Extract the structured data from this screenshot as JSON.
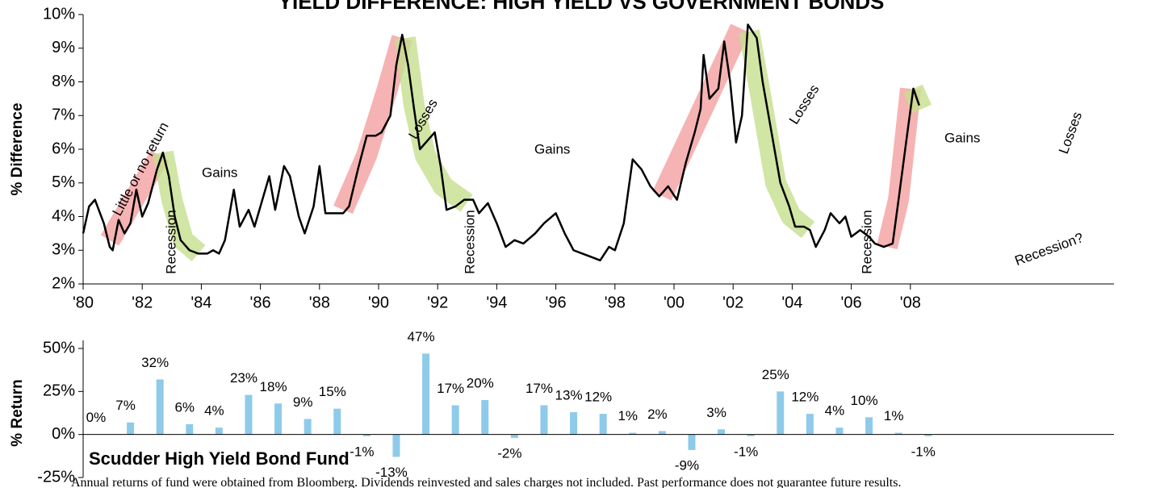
{
  "chart_data": [
    {
      "type": "line",
      "title": "YIELD DIFFERENCE: HIGH YIELD VS GOVERNMENT BONDS",
      "y_label": "% Difference",
      "xlim": [
        1980,
        2009
      ],
      "ylim": [
        2,
        10
      ],
      "xticks": [
        {
          "value": 1980,
          "label": "'80"
        },
        {
          "value": 1982,
          "label": "'82"
        },
        {
          "value": 1984,
          "label": "'84"
        },
        {
          "value": 1986,
          "label": "'86"
        },
        {
          "value": 1988,
          "label": "'88"
        },
        {
          "value": 1990,
          "label": "'90"
        },
        {
          "value": 1992,
          "label": "'92"
        },
        {
          "value": 1994,
          "label": "'94"
        },
        {
          "value": 1996,
          "label": "'96"
        },
        {
          "value": 1998,
          "label": "'98"
        },
        {
          "value": 2000,
          "label": "'00"
        },
        {
          "value": 2002,
          "label": "'02"
        },
        {
          "value": 2004,
          "label": "'04"
        },
        {
          "value": 2006,
          "label": "'06"
        },
        {
          "value": 2008,
          "label": "'08"
        }
      ],
      "yticks": [
        {
          "value": 2,
          "label": "2%"
        },
        {
          "value": 3,
          "label": "3%"
        },
        {
          "value": 4,
          "label": "4%"
        },
        {
          "value": 5,
          "label": "5%"
        },
        {
          "value": 6,
          "label": "6%"
        },
        {
          "value": 7,
          "label": "7%"
        },
        {
          "value": 8,
          "label": "8%"
        },
        {
          "value": 9,
          "label": "9%"
        },
        {
          "value": 10,
          "label": "10%"
        }
      ],
      "series": [
        {
          "color": "#000000",
          "x": [
            1980.0,
            1980.2,
            1980.4,
            1980.7,
            1980.9,
            1981.0,
            1981.2,
            1981.4,
            1981.6,
            1981.8,
            1982.0,
            1982.2,
            1982.5,
            1982.7,
            1982.9,
            1983.1,
            1983.3,
            1983.6,
            1983.9,
            1984.2,
            1984.4,
            1984.6,
            1984.8,
            1985.1,
            1985.3,
            1985.6,
            1985.8,
            1986.0,
            1986.3,
            1986.5,
            1986.8,
            1987.0,
            1987.3,
            1987.5,
            1987.8,
            1988.0,
            1988.2,
            1988.5,
            1988.8,
            1989.0,
            1989.3,
            1989.6,
            1989.9,
            1990.1,
            1990.4,
            1990.6,
            1990.8,
            1991.0,
            1991.2,
            1991.4,
            1991.7,
            1991.9,
            1992.1,
            1992.3,
            1992.6,
            1992.9,
            1993.2,
            1993.4,
            1993.7,
            1994.0,
            1994.3,
            1994.6,
            1994.9,
            1995.3,
            1995.6,
            1996.0,
            1996.3,
            1996.6,
            1996.9,
            1997.2,
            1997.5,
            1997.8,
            1998.0,
            1998.3,
            1998.6,
            1998.9,
            1999.2,
            1999.5,
            1999.8,
            2000.1,
            2000.4,
            2000.7,
            2000.9,
            2001.0,
            2001.2,
            2001.5,
            2001.7,
            2001.9,
            2002.1,
            2002.3,
            2002.5,
            2002.8,
            2003.0,
            2003.3,
            2003.6,
            2003.9,
            2004.1,
            2004.4,
            2004.6,
            2004.8,
            2005.1,
            2005.3,
            2005.6,
            2005.8,
            2006.0,
            2006.3,
            2006.6,
            2006.8,
            2007.1,
            2007.4,
            2007.6,
            2007.9,
            2008.1,
            2008.3
          ],
          "values": [
            3.5,
            4.3,
            4.5,
            3.8,
            3.1,
            3.0,
            3.9,
            3.5,
            3.8,
            4.8,
            4.0,
            4.4,
            5.4,
            5.9,
            5.2,
            4.0,
            3.3,
            3.0,
            2.9,
            2.9,
            3.0,
            2.9,
            3.3,
            4.8,
            3.7,
            4.2,
            3.7,
            4.3,
            5.2,
            4.2,
            5.5,
            5.2,
            4.0,
            3.5,
            4.3,
            5.5,
            4.1,
            4.1,
            4.1,
            4.3,
            5.4,
            6.4,
            6.4,
            6.5,
            7.0,
            8.5,
            9.4,
            8.5,
            7.2,
            6.0,
            6.3,
            6.5,
            5.5,
            4.2,
            4.3,
            4.5,
            4.5,
            4.1,
            4.4,
            3.8,
            3.1,
            3.3,
            3.2,
            3.5,
            3.8,
            4.1,
            3.5,
            3.0,
            2.9,
            2.8,
            2.7,
            3.1,
            3.0,
            3.8,
            5.7,
            5.4,
            4.9,
            4.6,
            4.9,
            4.5,
            5.6,
            6.5,
            7.2,
            8.8,
            7.5,
            7.8,
            9.2,
            8.0,
            6.2,
            7.0,
            9.7,
            9.3,
            8.0,
            6.5,
            5.0,
            4.3,
            3.7,
            3.7,
            3.6,
            3.1,
            3.6,
            4.1,
            3.8,
            4.0,
            3.4,
            3.6,
            3.4,
            3.2,
            3.1,
            3.2,
            4.5,
            6.5,
            7.8,
            7.3
          ]
        }
      ],
      "annotations": [
        "Little or no return",
        "Gains",
        "Recession",
        "Losses",
        "Recession",
        "Gains",
        "Losses",
        "Recession",
        "Gains",
        "Losses",
        "Recession?"
      ]
    },
    {
      "type": "bar",
      "y_label": "% Return",
      "annotation": "Scudder High Yield Bond Fund",
      "color": "#8ecbea",
      "ylim": [
        -25,
        50
      ],
      "yticks": [
        {
          "value": -25,
          "label": "-25%"
        },
        {
          "value": 0,
          "label": "0%"
        },
        {
          "value": 25,
          "label": "25%"
        },
        {
          "value": 50,
          "label": "50%"
        }
      ],
      "x": [
        1980,
        1981,
        1982,
        1983,
        1984,
        1985,
        1986,
        1987,
        1988,
        1989,
        1990,
        1991,
        1992,
        1993,
        1994,
        1995,
        1996,
        1997,
        1998,
        1999,
        2000,
        2001,
        2002,
        2003,
        2004,
        2005,
        2006,
        2007,
        2008
      ],
      "values": [
        0,
        7,
        32,
        6,
        4,
        23,
        18,
        9,
        15,
        -1,
        -13,
        47,
        17,
        20,
        -2,
        17,
        13,
        12,
        1,
        2,
        -9,
        3,
        -1,
        25,
        12,
        4,
        10,
        1,
        -1
      ],
      "value_labels": [
        "0%",
        "7%",
        "32%",
        "6%",
        "4%",
        "23%",
        "18%",
        "9%",
        "15%",
        "-1%",
        "-13%",
        "47%",
        "17%",
        "20%",
        "-2%",
        "17%",
        "13%",
        "12%",
        "1%",
        "2%",
        "-9%",
        "3%",
        "-1%",
        "25%",
        "12%",
        "4%",
        "10%",
        "1%",
        "-1%"
      ]
    }
  ],
  "footer": "Annual returns of fund were obtained from Bloomberg. Dividends reinvested and sales charges not included. Past performance does not guarantee future results."
}
